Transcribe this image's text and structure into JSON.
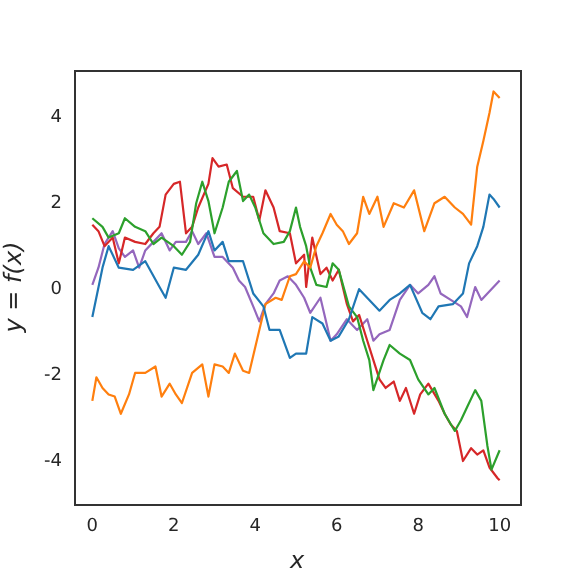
{
  "chart_data": {
    "type": "line",
    "xlabel": "x",
    "ylabel": "y = f(x)",
    "xlim": [
      -0.45,
      10.5
    ],
    "ylim": [
      -5.0,
      5.1
    ],
    "xticks": [
      0,
      2,
      4,
      6,
      8,
      10
    ],
    "yticks": [
      -4,
      -2,
      0,
      2,
      4
    ],
    "grid": false,
    "legend": false,
    "marker": "none",
    "line_style": "solid",
    "series": [
      {
        "color": "#1f77b4",
        "x": [
          0,
          0.25,
          0.4,
          0.65,
          1,
          1.3,
          1.65,
          1.8,
          2,
          2.3,
          2.6,
          2.85,
          3,
          3.2,
          3.35,
          3.7,
          3.95,
          4.2,
          4.35,
          4.6,
          4.85,
          5,
          5.25,
          5.4,
          5.65,
          5.85,
          6.05,
          6.3,
          6.55,
          6.8,
          7.05,
          7.3,
          7.55,
          7.8,
          8.1,
          8.3,
          8.5,
          8.85,
          9.1,
          9.25,
          9.45,
          9.6,
          9.75,
          9.85,
          10
        ],
        "values": [
          -0.65,
          0.5,
          1.0,
          0.5,
          0.45,
          0.65,
          0.05,
          -0.2,
          0.5,
          0.45,
          0.8,
          1.35,
          0.9,
          1.1,
          0.65,
          0.65,
          -0.1,
          -0.4,
          -0.95,
          -0.95,
          -1.6,
          -1.5,
          -1.5,
          -0.65,
          -0.8,
          -1.2,
          -1.1,
          -0.7,
          0,
          -0.25,
          -0.5,
          -0.25,
          -0.1,
          0.1,
          -0.55,
          -0.7,
          -0.4,
          -0.35,
          -0.1,
          0.6,
          1.0,
          1.45,
          2.2,
          2.1,
          1.9
        ]
      },
      {
        "color": "#ff7f0e",
        "x": [
          0,
          0.1,
          0.25,
          0.4,
          0.55,
          0.7,
          0.9,
          1.05,
          1.3,
          1.55,
          1.7,
          1.9,
          2.05,
          2.2,
          2.45,
          2.7,
          2.85,
          3,
          3.2,
          3.35,
          3.5,
          3.7,
          3.85,
          4.1,
          4.25,
          4.5,
          4.65,
          4.85,
          5,
          5.2,
          5.35,
          5.5,
          5.65,
          5.85,
          6,
          6.15,
          6.3,
          6.5,
          6.65,
          6.8,
          7,
          7.15,
          7.4,
          7.65,
          7.9,
          8.15,
          8.4,
          8.65,
          8.9,
          9.1,
          9.3,
          9.45,
          9.6,
          9.75,
          9.85,
          10
        ],
        "values": [
          -2.6,
          -2.05,
          -2.3,
          -2.45,
          -2.5,
          -2.9,
          -2.45,
          -1.95,
          -1.95,
          -1.8,
          -2.5,
          -2.2,
          -2.45,
          -2.65,
          -1.95,
          -1.75,
          -2.5,
          -1.75,
          -1.8,
          -1.95,
          -1.5,
          -1.9,
          -1.95,
          -0.95,
          -0.35,
          -0.2,
          -0.25,
          0.3,
          0.35,
          0.65,
          0.5,
          1.0,
          1.3,
          1.75,
          1.5,
          1.35,
          1.05,
          1.3,
          2.15,
          1.75,
          2.15,
          1.45,
          2.0,
          1.9,
          2.3,
          1.35,
          2.0,
          2.15,
          1.9,
          1.75,
          1.5,
          2.85,
          3.45,
          4.1,
          4.6,
          4.45
        ]
      },
      {
        "color": "#2ca02c",
        "x": [
          0,
          0.25,
          0.4,
          0.65,
          0.8,
          1.05,
          1.3,
          1.5,
          1.7,
          2,
          2.2,
          2.4,
          2.55,
          2.7,
          2.85,
          3,
          3.2,
          3.35,
          3.55,
          3.7,
          3.85,
          4,
          4.2,
          4.45,
          4.7,
          4.85,
          5,
          5.1,
          5.25,
          5.35,
          5.5,
          5.75,
          5.9,
          6.05,
          6.3,
          6.5,
          6.65,
          6.8,
          6.9,
          7.15,
          7.3,
          7.55,
          7.8,
          8,
          8.25,
          8.4,
          8.65,
          8.9,
          9.05,
          9.2,
          9.4,
          9.55,
          9.7,
          9.8,
          10
        ],
        "values": [
          1.65,
          1.45,
          1.2,
          1.3,
          1.65,
          1.45,
          1.35,
          1.05,
          1.2,
          1.0,
          0.8,
          1.1,
          2.0,
          2.5,
          2.05,
          1.3,
          1.9,
          2.5,
          2.75,
          2.05,
          2.2,
          1.9,
          1.3,
          1.05,
          1.1,
          1.35,
          1.9,
          1.45,
          1.0,
          0.5,
          0.1,
          0.05,
          0.6,
          0.45,
          -0.4,
          -0.65,
          -1.2,
          -1.65,
          -2.35,
          -1.65,
          -1.3,
          -1.5,
          -1.65,
          -2.1,
          -2.45,
          -2.3,
          -2.9,
          -3.3,
          -3.05,
          -2.75,
          -2.35,
          -2.6,
          -3.65,
          -4.2,
          -3.75
        ]
      },
      {
        "color": "#d62728",
        "x": [
          0,
          0.15,
          0.3,
          0.5,
          0.65,
          0.8,
          1.05,
          1.3,
          1.5,
          1.65,
          1.8,
          2,
          2.15,
          2.3,
          2.45,
          2.6,
          2.85,
          2.95,
          3.1,
          3.3,
          3.45,
          3.7,
          3.95,
          4.1,
          4.25,
          4.45,
          4.6,
          4.85,
          5,
          5.2,
          5.25,
          5.4,
          5.6,
          5.75,
          5.9,
          6.05,
          6.25,
          6.4,
          6.55,
          6.75,
          6.9,
          7.05,
          7.2,
          7.4,
          7.55,
          7.7,
          7.9,
          8.05,
          8.25,
          8.5,
          8.65,
          8.8,
          8.95,
          9.1,
          9.3,
          9.45,
          9.6,
          9.75,
          9.95,
          10
        ],
        "values": [
          1.5,
          1.35,
          1.0,
          1.2,
          0.6,
          1.2,
          1.1,
          1.05,
          1.3,
          1.45,
          2.2,
          2.45,
          2.5,
          1.3,
          1.45,
          1.9,
          2.45,
          3.05,
          2.85,
          2.9,
          2.35,
          2.15,
          2.15,
          1.6,
          2.3,
          1.9,
          1.35,
          1.3,
          0.6,
          0.8,
          0.05,
          1.2,
          0.35,
          0.5,
          0.2,
          0.45,
          -0.35,
          -0.75,
          -0.6,
          -1.2,
          -1.65,
          -2.1,
          -2.3,
          -2.15,
          -2.6,
          -2.3,
          -2.9,
          -2.45,
          -2.2,
          -2.6,
          -2.9,
          -3.15,
          -3.3,
          -4.0,
          -3.7,
          -3.85,
          -3.75,
          -4.15,
          -4.4,
          -4.45
        ]
      },
      {
        "color": "#9467bd",
        "x": [
          0,
          0.15,
          0.3,
          0.5,
          0.65,
          0.8,
          1,
          1.15,
          1.3,
          1.5,
          1.7,
          1.9,
          2.05,
          2.3,
          2.45,
          2.6,
          2.8,
          3,
          3.2,
          3.45,
          3.6,
          3.75,
          3.95,
          4.1,
          4.25,
          4.45,
          4.6,
          4.8,
          5,
          5.2,
          5.35,
          5.6,
          5.85,
          6,
          6.25,
          6.5,
          6.75,
          6.9,
          7.05,
          7.3,
          7.55,
          7.8,
          8,
          8.25,
          8.4,
          8.55,
          8.8,
          9.05,
          9.2,
          9.4,
          9.55,
          9.7,
          9.85,
          10
        ],
        "values": [
          0.1,
          0.5,
          1.05,
          1.35,
          0.95,
          0.75,
          0.9,
          0.5,
          0.9,
          1.1,
          1.3,
          0.9,
          1.1,
          1.1,
          1.35,
          1.05,
          1.3,
          0.75,
          0.75,
          0.5,
          0.2,
          0.05,
          -0.4,
          -0.75,
          -0.35,
          -0.1,
          0.2,
          0.3,
          0.1,
          -0.2,
          -0.55,
          -0.2,
          -1.2,
          -1.05,
          -0.7,
          -0.95,
          -0.7,
          -1.2,
          -1.05,
          -0.95,
          -0.25,
          0.1,
          -0.1,
          0.1,
          0.3,
          -0.1,
          -0.25,
          -0.4,
          -0.65,
          0.05,
          -0.25,
          -0.1,
          0.05,
          0.2
        ]
      }
    ]
  }
}
